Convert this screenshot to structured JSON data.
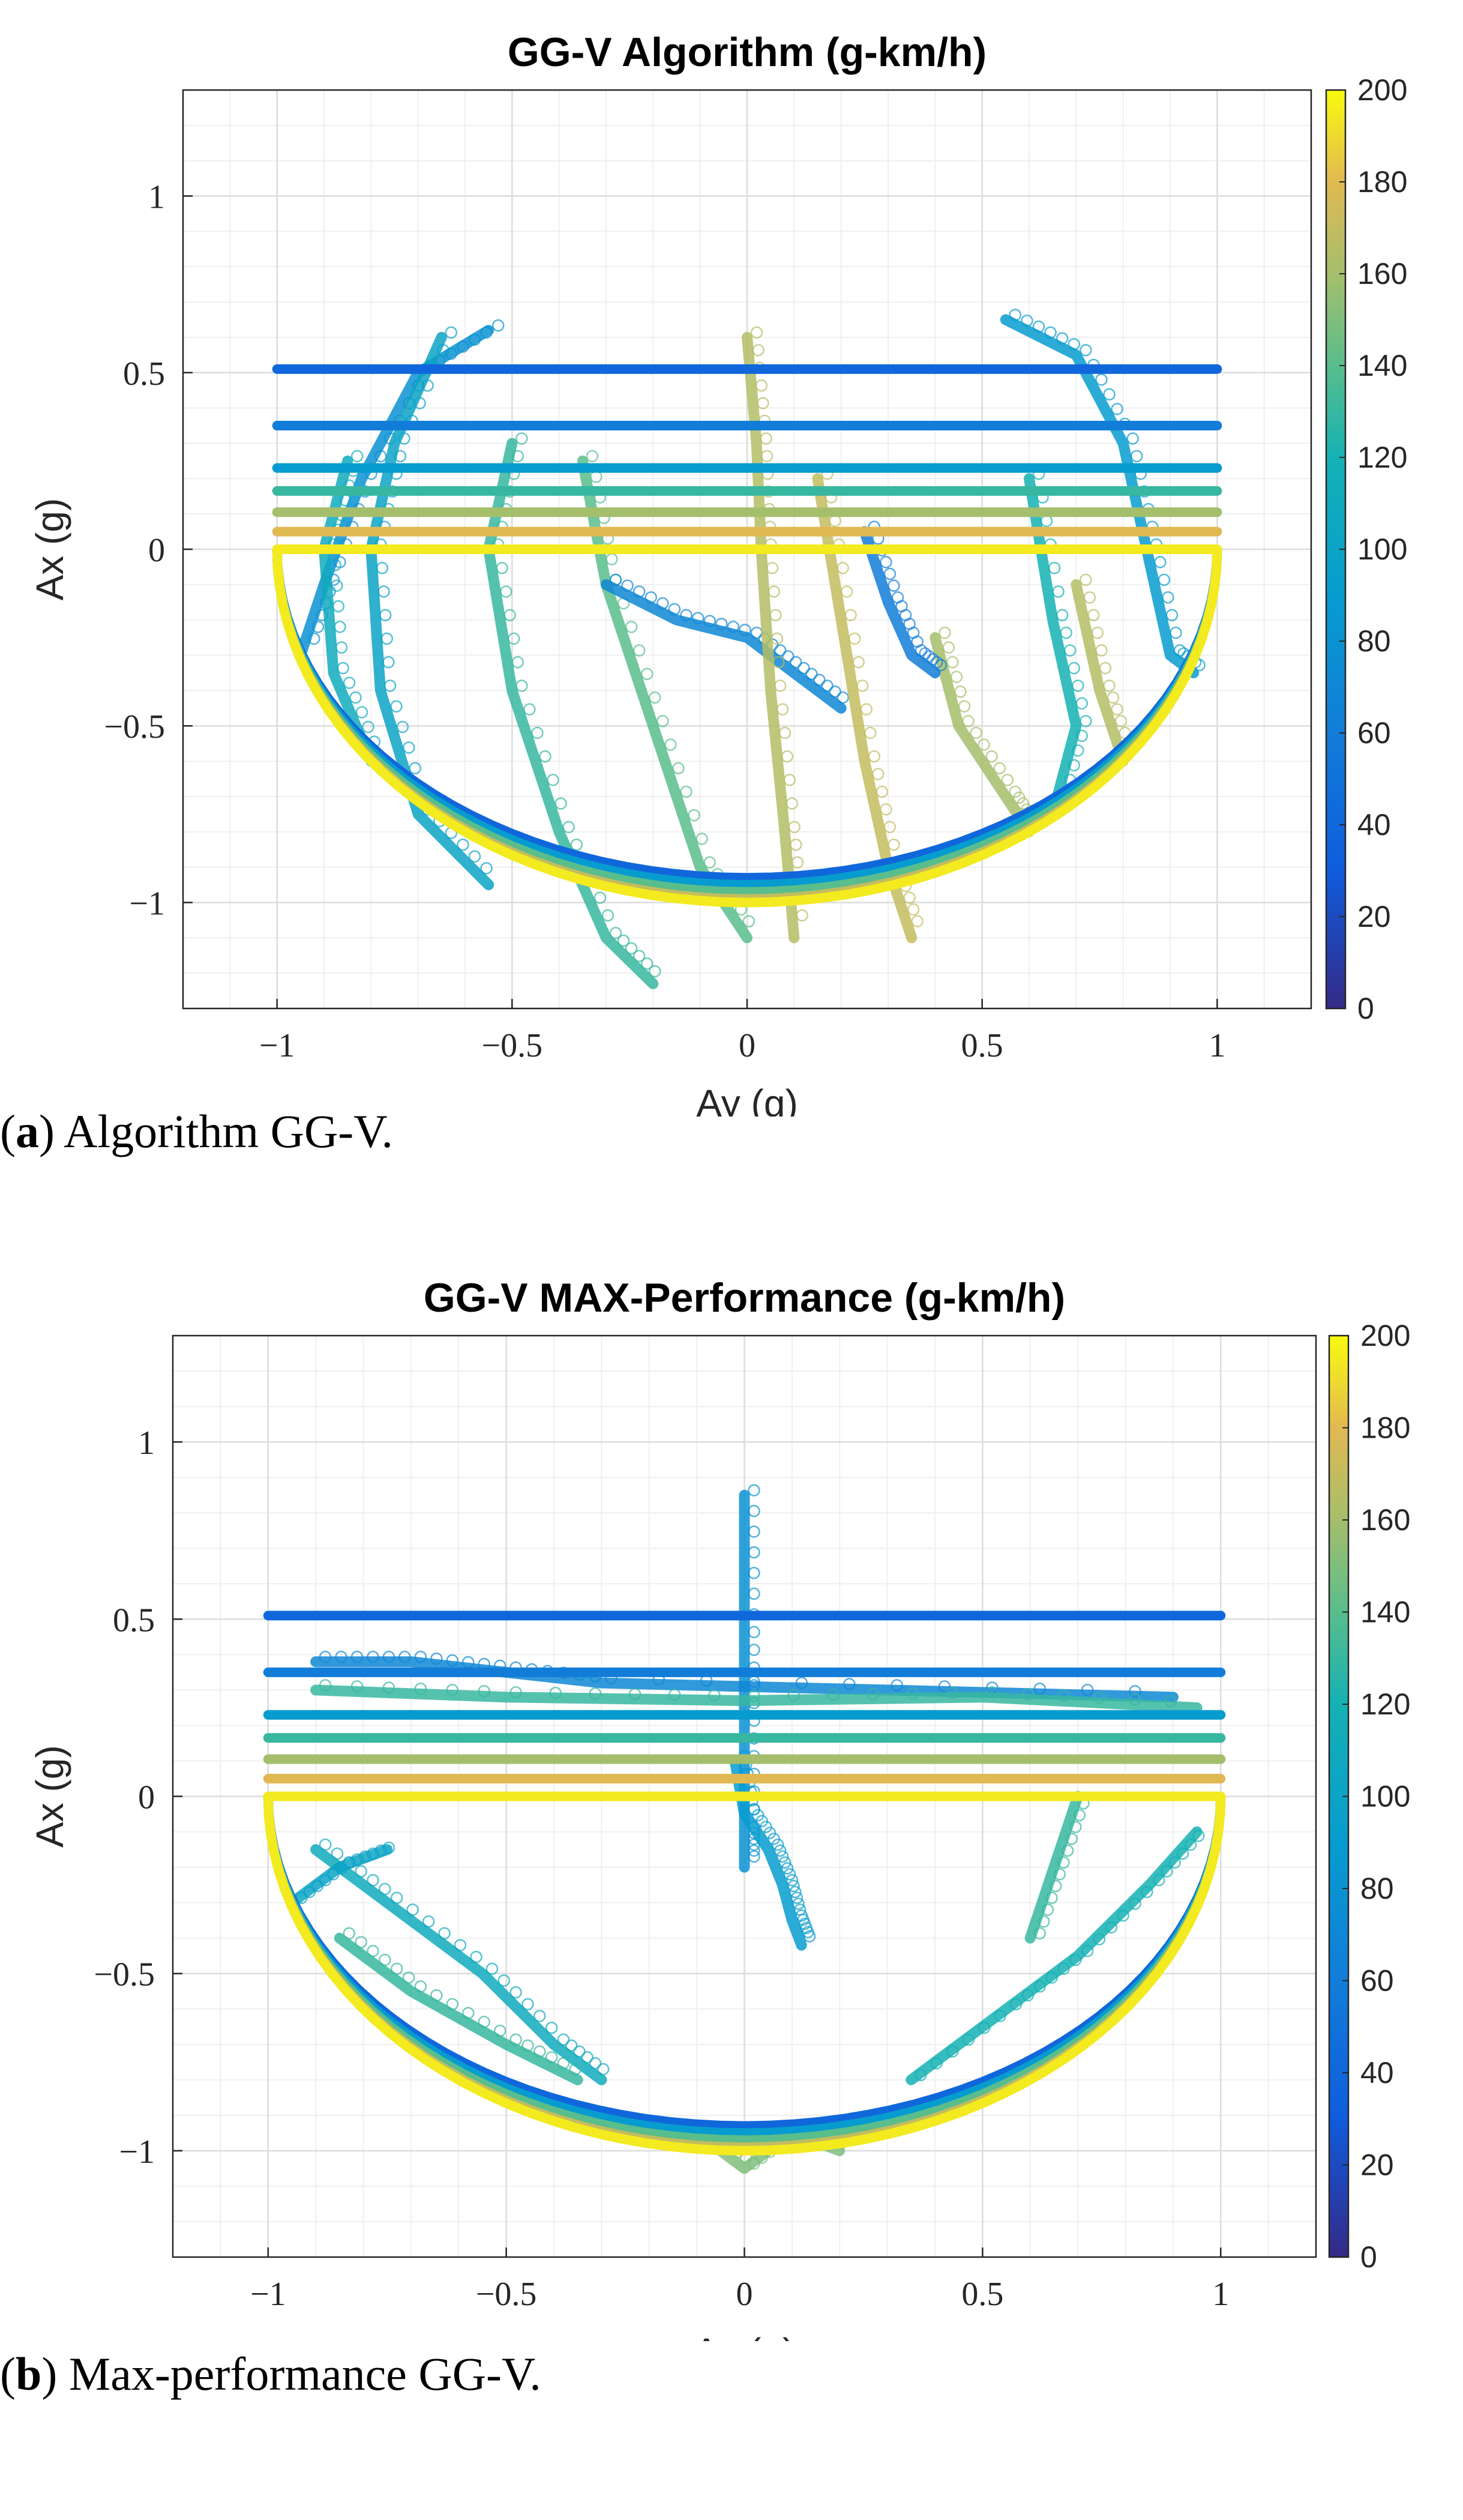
{
  "chart_data": [
    {
      "type": "scatter",
      "id": "a",
      "title": "GG-V Algorithm (g-km/h)",
      "xlabel": "Ay (g)",
      "ylabel": "Ax (g)",
      "xlim": [
        -1.2,
        1.2
      ],
      "ylim": [
        -1.3,
        1.3
      ],
      "xticks": [
        -1,
        -0.5,
        0,
        0.5,
        1
      ],
      "xtick_labels": [
        "−1",
        "−0.5",
        "0",
        "0.5",
        "1"
      ],
      "yticks": [
        1,
        0.5,
        0,
        -0.5,
        -1
      ],
      "ytick_labels": [
        "1",
        "0.5",
        "0",
        "−0.5",
        "−1"
      ],
      "grid": true,
      "colorbar": {
        "min": 0,
        "max": 200,
        "ticks": [
          0,
          20,
          40,
          60,
          80,
          100,
          120,
          140,
          160,
          180,
          200
        ],
        "colormap": "parula"
      },
      "envelope_lines": [
        {
          "speed": 40,
          "ax": 0.51,
          "ay_range": [
            -1,
            1
          ]
        },
        {
          "speed": 60,
          "ax": 0.35,
          "ay_range": [
            -1,
            1
          ]
        },
        {
          "speed": 90,
          "ax": 0.23,
          "ay_range": [
            -1,
            1
          ]
        },
        {
          "speed": 130,
          "ax": 0.165,
          "ay_range": [
            -1,
            1
          ]
        },
        {
          "speed": 160,
          "ax": 0.105,
          "ay_range": [
            -1,
            1
          ]
        },
        {
          "speed": 180,
          "ax": 0.05,
          "ay_range": [
            -1,
            1
          ]
        },
        {
          "speed": 195,
          "ax": 0.0,
          "ay_range": [
            -1,
            1
          ]
        }
      ],
      "braking_arcs": [
        {
          "speed": 40,
          "min_ax": -0.93
        },
        {
          "speed": 90,
          "min_ax": -0.95
        },
        {
          "speed": 140,
          "min_ax": -0.97
        },
        {
          "speed": 170,
          "min_ax": -0.99
        },
        {
          "speed": 195,
          "min_ax": -1.0
        }
      ],
      "traces": [
        {
          "speed": 80,
          "points": [
            [
              -0.55,
              0.62
            ],
            [
              -0.7,
              0.5
            ],
            [
              -0.82,
              0.2
            ],
            [
              -0.9,
              -0.1
            ],
            [
              -0.95,
              -0.3
            ]
          ]
        },
        {
          "speed": 100,
          "points": [
            [
              -0.65,
              0.6
            ],
            [
              -0.75,
              0.3
            ],
            [
              -0.8,
              0.0
            ],
            [
              -0.78,
              -0.4
            ],
            [
              -0.7,
              -0.75
            ],
            [
              -0.55,
              -0.95
            ]
          ]
        },
        {
          "speed": 130,
          "points": [
            [
              -0.5,
              0.3
            ],
            [
              -0.55,
              0.0
            ],
            [
              -0.5,
              -0.4
            ],
            [
              -0.4,
              -0.8
            ],
            [
              -0.3,
              -1.1
            ],
            [
              -0.2,
              -1.23
            ]
          ]
        },
        {
          "speed": 140,
          "points": [
            [
              -0.35,
              0.25
            ],
            [
              -0.3,
              -0.1
            ],
            [
              -0.2,
              -0.5
            ],
            [
              -0.1,
              -0.9
            ],
            [
              0.0,
              -1.1
            ]
          ]
        },
        {
          "speed": 70,
          "points": [
            [
              -0.3,
              -0.1
            ],
            [
              -0.15,
              -0.2
            ],
            [
              0.0,
              -0.25
            ],
            [
              0.1,
              -0.35
            ],
            [
              0.2,
              -0.45
            ]
          ]
        },
        {
          "speed": 165,
          "points": [
            [
              0.0,
              0.6
            ],
            [
              0.02,
              0.3
            ],
            [
              0.03,
              0.0
            ],
            [
              0.05,
              -0.4
            ],
            [
              0.08,
              -0.8
            ],
            [
              0.1,
              -1.1
            ]
          ]
        },
        {
          "speed": 170,
          "points": [
            [
              0.15,
              0.2
            ],
            [
              0.2,
              -0.2
            ],
            [
              0.25,
              -0.6
            ],
            [
              0.3,
              -0.9
            ],
            [
              0.35,
              -1.1
            ]
          ]
        },
        {
          "speed": 160,
          "points": [
            [
              0.4,
              -0.25
            ],
            [
              0.45,
              -0.5
            ],
            [
              0.55,
              -0.7
            ],
            [
              0.6,
              -0.8
            ]
          ]
        },
        {
          "speed": 60,
          "points": [
            [
              0.25,
              0.05
            ],
            [
              0.3,
              -0.15
            ],
            [
              0.35,
              -0.3
            ],
            [
              0.4,
              -0.35
            ]
          ]
        },
        {
          "speed": 90,
          "points": [
            [
              0.55,
              0.65
            ],
            [
              0.7,
              0.55
            ],
            [
              0.8,
              0.3
            ],
            [
              0.85,
              0.0
            ],
            [
              0.9,
              -0.3
            ],
            [
              0.95,
              -0.35
            ]
          ]
        },
        {
          "speed": 120,
          "points": [
            [
              0.6,
              0.2
            ],
            [
              0.65,
              -0.2
            ],
            [
              0.7,
              -0.5
            ],
            [
              0.65,
              -0.75
            ]
          ]
        },
        {
          "speed": 165,
          "points": [
            [
              0.7,
              -0.1
            ],
            [
              0.75,
              -0.4
            ],
            [
              0.8,
              -0.6
            ]
          ]
        },
        {
          "speed": 110,
          "points": [
            [
              -0.85,
              0.25
            ],
            [
              -0.9,
              0.0
            ],
            [
              -0.88,
              -0.35
            ],
            [
              -0.8,
              -0.6
            ]
          ]
        }
      ]
    },
    {
      "type": "scatter",
      "id": "b",
      "title": "GG-V MAX-Performance (g-km/h)",
      "xlabel": "Ay (g)",
      "ylabel": "Ax (g)",
      "xlim": [
        -1.2,
        1.2
      ],
      "ylim": [
        -1.3,
        1.3
      ],
      "xticks": [
        -1,
        -0.5,
        0,
        0.5,
        1
      ],
      "xtick_labels": [
        "−1",
        "−0.5",
        "0",
        "0.5",
        "1"
      ],
      "yticks": [
        1,
        0.5,
        0,
        -0.5,
        -1
      ],
      "ytick_labels": [
        "1",
        "0.5",
        "0",
        "−0.5",
        "−1"
      ],
      "grid": true,
      "colorbar": {
        "min": 0,
        "max": 200,
        "ticks": [
          0,
          20,
          40,
          60,
          80,
          100,
          120,
          140,
          160,
          180,
          200
        ],
        "colormap": "parula"
      },
      "envelope_lines": [
        {
          "speed": 40,
          "ax": 0.51,
          "ay_range": [
            -1,
            1
          ]
        },
        {
          "speed": 60,
          "ax": 0.35,
          "ay_range": [
            -1,
            1
          ]
        },
        {
          "speed": 90,
          "ax": 0.23,
          "ay_range": [
            -1,
            1
          ]
        },
        {
          "speed": 130,
          "ax": 0.165,
          "ay_range": [
            -1,
            1
          ]
        },
        {
          "speed": 160,
          "ax": 0.105,
          "ay_range": [
            -1,
            1
          ]
        },
        {
          "speed": 180,
          "ax": 0.05,
          "ay_range": [
            -1,
            1
          ]
        },
        {
          "speed": 195,
          "ax": 0.0,
          "ay_range": [
            -1,
            1
          ]
        }
      ],
      "braking_arcs": [
        {
          "speed": 40,
          "min_ax": -0.93
        },
        {
          "speed": 90,
          "min_ax": -0.95
        },
        {
          "speed": 140,
          "min_ax": -0.97
        },
        {
          "speed": 170,
          "min_ax": -0.99
        },
        {
          "speed": 195,
          "min_ax": -1.0
        }
      ],
      "traces": [
        {
          "speed": 80,
          "points": [
            [
              0.0,
              0.85
            ],
            [
              0.0,
              0.5
            ],
            [
              0.0,
              0.2
            ],
            [
              0.0,
              -0.1
            ],
            [
              0.0,
              -0.2
            ]
          ]
        },
        {
          "speed": 90,
          "points": [
            [
              -0.02,
              0.1
            ],
            [
              0.0,
              -0.05
            ],
            [
              0.05,
              -0.15
            ],
            [
              0.08,
              -0.25
            ],
            [
              0.1,
              -0.35
            ],
            [
              0.12,
              -0.42
            ]
          ]
        },
        {
          "speed": 110,
          "points": [
            [
              -0.9,
              -0.15
            ],
            [
              -0.75,
              -0.3
            ],
            [
              -0.55,
              -0.5
            ],
            [
              -0.4,
              -0.7
            ],
            [
              -0.3,
              -0.8
            ]
          ]
        },
        {
          "speed": 130,
          "points": [
            [
              -0.85,
              -0.4
            ],
            [
              -0.7,
              -0.55
            ],
            [
              -0.5,
              -0.7
            ],
            [
              -0.35,
              -0.8
            ]
          ]
        },
        {
          "speed": 100,
          "points": [
            [
              -0.95,
              -0.3
            ],
            [
              -0.85,
              -0.2
            ],
            [
              -0.75,
              -0.15
            ]
          ]
        },
        {
          "speed": 120,
          "points": [
            [
              0.35,
              -0.8
            ],
            [
              0.55,
              -0.6
            ],
            [
              0.7,
              -0.45
            ],
            [
              0.85,
              -0.25
            ],
            [
              0.95,
              -0.1
            ]
          ]
        },
        {
          "speed": 130,
          "points": [
            [
              0.6,
              -0.4
            ],
            [
              0.65,
              -0.2
            ],
            [
              0.7,
              0.0
            ]
          ]
        },
        {
          "speed": 150,
          "points": [
            [
              -0.1,
              -0.95
            ],
            [
              0.0,
              -1.05
            ],
            [
              0.1,
              -0.95
            ],
            [
              0.2,
              -1.0
            ]
          ]
        },
        {
          "speed": 70,
          "points": [
            [
              -0.9,
              0.38
            ],
            [
              -0.7,
              0.38
            ],
            [
              -0.5,
              0.35
            ],
            [
              -0.3,
              0.32
            ],
            [
              0.3,
              0.3
            ],
            [
              0.9,
              0.28
            ]
          ]
        },
        {
          "speed": 130,
          "points": [
            [
              -0.9,
              0.3
            ],
            [
              -0.5,
              0.28
            ],
            [
              0.0,
              0.27
            ],
            [
              0.5,
              0.28
            ],
            [
              0.95,
              0.25
            ]
          ]
        }
      ]
    }
  ],
  "captions": {
    "a_label": "a",
    "a_text": " Algorithm GG-V.",
    "b_label": "b",
    "b_text": " Max-performance GG-V."
  }
}
